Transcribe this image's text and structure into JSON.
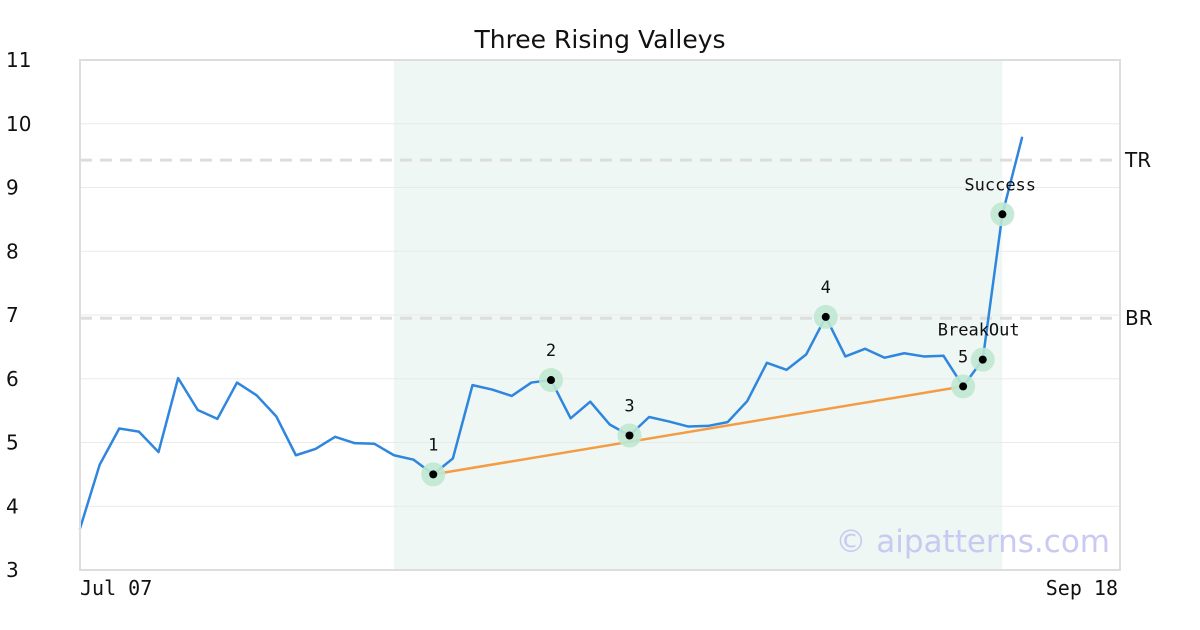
{
  "watermark": "© aipatterns.com",
  "colors": {
    "price_line": "#2e86de",
    "trend_line": "#f39c45",
    "pattern_zone": "#eef7f3",
    "marker_halo": "#bfe8d3",
    "marker_dot": "#000000",
    "level_line": "#dddddd",
    "grid": "#eaeaea",
    "frame": "#dddddd"
  },
  "chart_data": {
    "type": "line",
    "title": "Three Rising Valleys",
    "xlabel": "",
    "ylabel": "",
    "ylim": [
      3,
      11
    ],
    "yticks": [
      3,
      4,
      5,
      6,
      7,
      8,
      9,
      10,
      11
    ],
    "xtick_labels": [
      {
        "index": 0,
        "label": "Jul 07"
      },
      {
        "index": 52,
        "label": "Sep 18"
      }
    ],
    "grid": {
      "horizontal": true,
      "vertical": false
    },
    "x_count": 53,
    "series": [
      {
        "values": [
          3.65,
          4.65,
          5.22,
          5.17,
          4.85,
          6.01,
          5.51,
          5.37,
          5.94,
          5.74,
          5.41,
          4.8,
          4.9,
          5.09,
          4.99,
          4.98,
          4.8,
          4.73,
          4.5,
          4.75,
          5.9,
          5.83,
          5.73,
          5.94,
          5.98,
          5.38,
          5.64,
          5.28,
          5.11,
          5.4,
          5.33,
          5.25,
          5.26,
          5.32,
          5.65,
          6.25,
          6.14,
          6.38,
          6.97,
          6.35,
          6.47,
          6.33,
          6.4,
          6.35,
          6.36,
          5.88,
          6.3,
          8.58,
          9.78
        ]
      }
    ],
    "pattern_range": {
      "start_index": 16,
      "end_index": 47
    },
    "levels": [
      {
        "label": "TR",
        "value": 9.43
      },
      {
        "label": "BR",
        "value": 6.95
      }
    ],
    "trend_line": {
      "from": {
        "index": 18,
        "value": 4.5
      },
      "to": {
        "index": 45,
        "value": 5.88
      }
    },
    "points": [
      {
        "label": "1",
        "index": 18,
        "value": 4.5
      },
      {
        "label": "2",
        "index": 24,
        "value": 5.98
      },
      {
        "label": "3",
        "index": 28,
        "value": 5.11
      },
      {
        "label": "4",
        "index": 38,
        "value": 6.97
      },
      {
        "label": "5",
        "index": 45,
        "value": 5.88
      },
      {
        "label": "BreakOut",
        "index": 46,
        "value": 6.3
      },
      {
        "label": "Success",
        "index": 47,
        "value": 8.58
      }
    ]
  }
}
